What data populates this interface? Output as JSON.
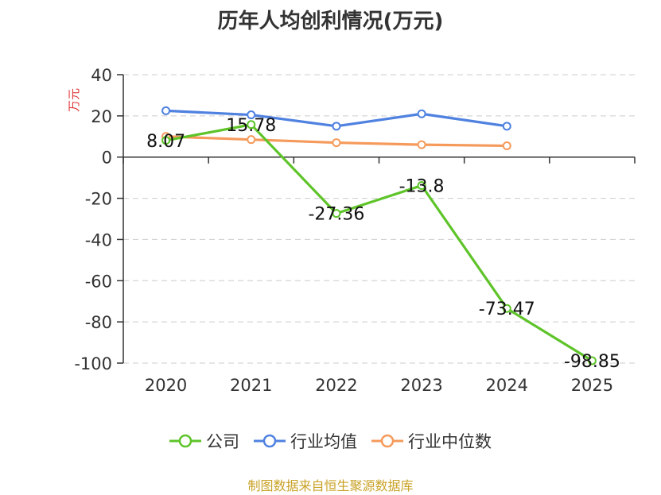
{
  "chart_data": {
    "type": "line",
    "title": "历年人均创利情况(万元)",
    "ylabel": "万元",
    "categories": [
      "2020",
      "2021",
      "2022",
      "2023",
      "2024",
      "2025"
    ],
    "ylim": [
      -100,
      40
    ],
    "yticks": [
      40,
      20,
      0,
      -20,
      -40,
      -60,
      -80,
      -100
    ],
    "grid": true,
    "legend_position": "bottom",
    "series": [
      {
        "name": "公司",
        "color": "#5ec429",
        "values": [
          8.07,
          15.78,
          -27.36,
          -13.8,
          -73.47,
          -98.85
        ],
        "labels": [
          "8.07",
          "15.78",
          "-27.36",
          "-13.8",
          "-73.47",
          "-98.85"
        ]
      },
      {
        "name": "行业均值",
        "color": "#4f81e0",
        "values": [
          22.5,
          20.5,
          15.0,
          21.0,
          15.0,
          null
        ]
      },
      {
        "name": "行业中位数",
        "color": "#f59a5b",
        "values": [
          10.0,
          8.5,
          7.0,
          6.0,
          5.5,
          null
        ]
      }
    ]
  },
  "source": "制图数据来自恒生聚源数据库"
}
